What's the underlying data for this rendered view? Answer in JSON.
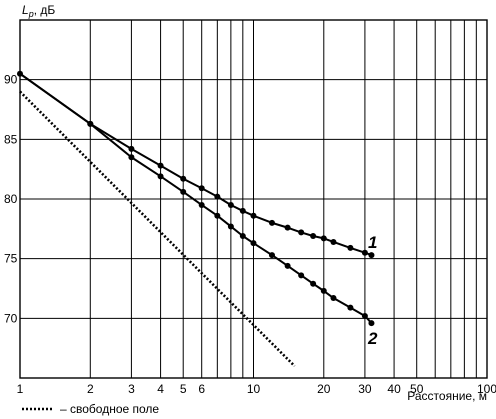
{
  "chart_data": {
    "type": "line",
    "x_scale": "log",
    "xlim": [
      1,
      100
    ],
    "ylim": [
      65,
      95
    ],
    "grid": true,
    "ylabel": "L",
    "ylabel_sub": "p",
    "ylabel_unit": ", дБ",
    "xlabel": "Расстояние, м",
    "x_ticks": [
      1,
      2,
      3,
      4,
      5,
      6,
      10,
      20,
      30,
      40,
      50,
      100
    ],
    "x_tick_labels": [
      "1",
      "2",
      "3",
      "4",
      "5",
      "6",
      "10",
      "20",
      "30",
      "40",
      "50",
      "100"
    ],
    "x_grid": [
      1,
      2,
      3,
      4,
      5,
      6,
      7,
      8,
      9,
      10,
      20,
      30,
      40,
      50,
      60,
      70,
      80,
      90,
      100
    ],
    "y_ticks": [
      70,
      75,
      80,
      85,
      90
    ],
    "y_tick_labels": [
      "70",
      "75",
      "80",
      "85",
      "90"
    ],
    "series": [
      {
        "name": "1",
        "style": "solid",
        "x": [
          1.0,
          2.0,
          3.0,
          4.0,
          5.0,
          6.0,
          7.0,
          8.0,
          9.0,
          10.0,
          12.0,
          14.0,
          16.0,
          18.0,
          20.0,
          22.0,
          26.0,
          30.0,
          32.0
        ],
        "y": [
          90.5,
          86.3,
          84.2,
          82.8,
          81.7,
          80.9,
          80.2,
          79.5,
          79.0,
          78.6,
          78.0,
          77.6,
          77.2,
          76.9,
          76.7,
          76.4,
          75.9,
          75.5,
          75.3
        ]
      },
      {
        "name": "2",
        "style": "solid",
        "x": [
          1.0,
          2.0,
          3.0,
          4.0,
          5.0,
          6.0,
          7.0,
          8.0,
          9.0,
          10.0,
          12.0,
          14.0,
          16.0,
          18.0,
          20.0,
          22.0,
          26.0,
          30.0,
          32.0
        ],
        "y": [
          90.5,
          86.3,
          83.5,
          81.9,
          80.6,
          79.5,
          78.6,
          77.7,
          76.9,
          76.3,
          75.3,
          74.4,
          73.6,
          72.9,
          72.3,
          71.7,
          70.9,
          70.2,
          69.6
        ],
        "marker_x": [
          2.0,
          3.0,
          4.0,
          5.0,
          6.0,
          7.0,
          8.0,
          9.0,
          10.0,
          12.0,
          14.0,
          16.0,
          18.0,
          20.0,
          22.0,
          26.0,
          30.0,
          32.0
        ]
      },
      {
        "name": "свободное поле",
        "style": "dotted",
        "x": [
          1.0,
          15.0
        ],
        "y": [
          89.0,
          66.0
        ]
      }
    ],
    "legend": {
      "position": "bottom-left",
      "text": "– свободное поле"
    }
  }
}
